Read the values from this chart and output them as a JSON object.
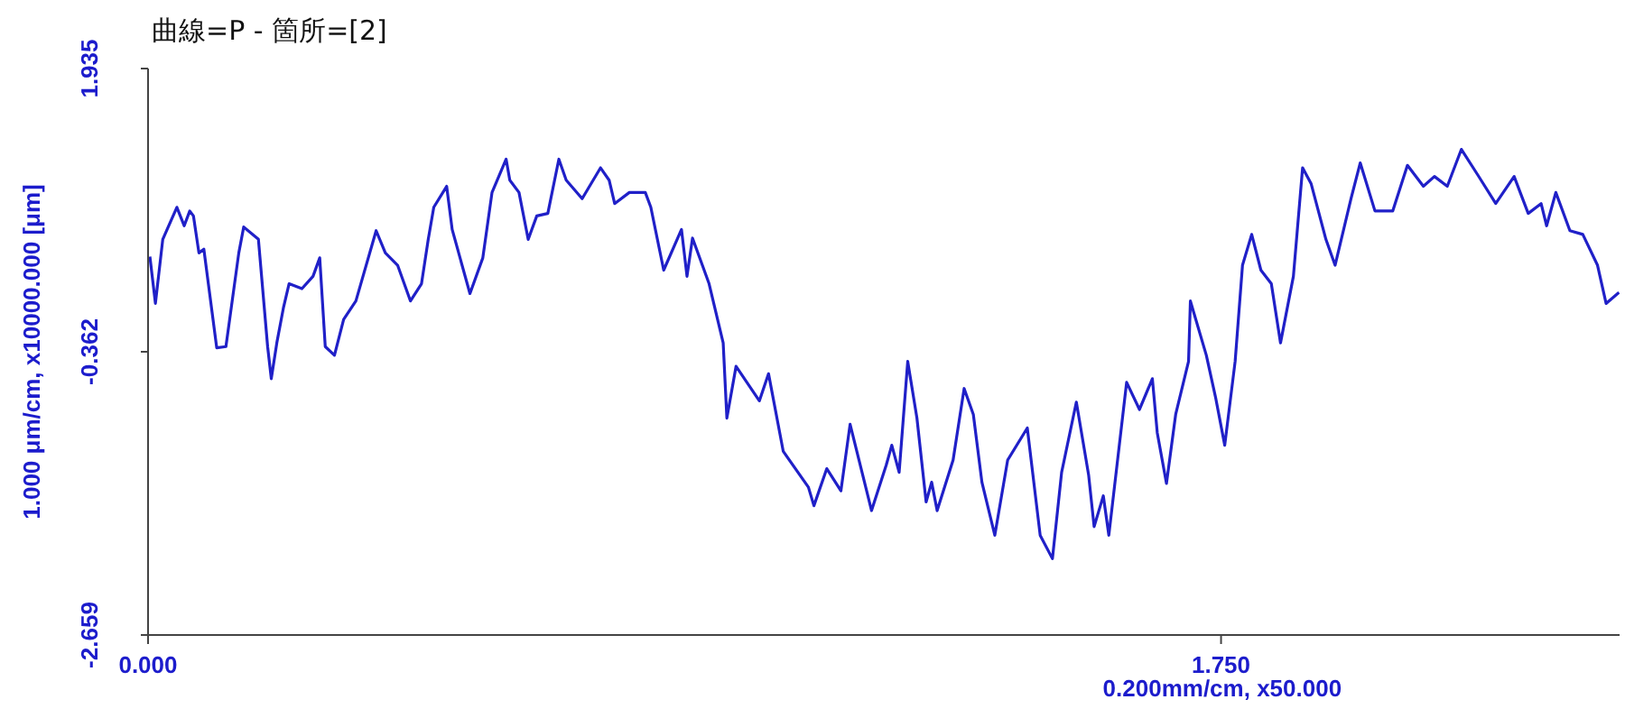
{
  "chart_data": {
    "type": "line",
    "title": "曲線=P - 箇所=[2]",
    "xlabel": "0.200mm/cm, x50.000",
    "ylabel": "1.000 μm/cm, x10000.000 [μm]",
    "xlim": [
      0,
      2.4
    ],
    "xticks": [
      {
        "value": 0,
        "label": "0.000"
      },
      {
        "value": 1.75,
        "label": "1.750"
      }
    ],
    "ylim": [
      -2.659,
      1.935
    ],
    "yticks": [
      -2.659,
      -0.362,
      1.935
    ],
    "series": [
      {
        "color": "#2020c8",
        "x": [
          0.003,
          0.012,
          0.024,
          0.047,
          0.059,
          0.068,
          0.074,
          0.083,
          0.091,
          0.112,
          0.127,
          0.148,
          0.156,
          0.18,
          0.195,
          0.201,
          0.21,
          0.221,
          0.23,
          0.251,
          0.269,
          0.28,
          0.289,
          0.304,
          0.319,
          0.339,
          0.372,
          0.387,
          0.407,
          0.428,
          0.446,
          0.457,
          0.466,
          0.487,
          0.496,
          0.525,
          0.546,
          0.561,
          0.584,
          0.59,
          0.605,
          0.62,
          0.634,
          0.652,
          0.67,
          0.682,
          0.708,
          0.738,
          0.752,
          0.761,
          0.785,
          0.811,
          0.82,
          0.841,
          0.87,
          0.879,
          0.888,
          0.915,
          0.938,
          0.944,
          0.959,
          0.997,
          1.012,
          1.036,
          1.077,
          1.086,
          1.107,
          1.13,
          1.145,
          1.18,
          1.204,
          1.213,
          1.225,
          1.239,
          1.254,
          1.269,
          1.278,
          1.287,
          1.313,
          1.331,
          1.346,
          1.36,
          1.381,
          1.402,
          1.434,
          1.455,
          1.475,
          1.49,
          1.514,
          1.534,
          1.543,
          1.558,
          1.567,
          1.596,
          1.617,
          1.638,
          1.646,
          1.661,
          1.676,
          1.697,
          1.7,
          1.726,
          1.741,
          1.756,
          1.773,
          1.785,
          1.8,
          1.815,
          1.832,
          1.847,
          1.868,
          1.883,
          1.897,
          1.921,
          1.936,
          1.962,
          1.977,
          2.001,
          2.03,
          2.054,
          2.08,
          2.098,
          2.119,
          2.142,
          2.169,
          2.198,
          2.228,
          2.251,
          2.272,
          2.281,
          2.296,
          2.319,
          2.34,
          2.364,
          2.378,
          2.399
        ],
        "values": [
          0.41,
          0.03,
          0.55,
          0.81,
          0.66,
          0.78,
          0.74,
          0.44,
          0.47,
          -0.33,
          -0.32,
          0.44,
          0.65,
          0.55,
          -0.32,
          -0.58,
          -0.29,
          0.0,
          0.19,
          0.15,
          0.25,
          0.4,
          -0.32,
          -0.39,
          -0.1,
          0.05,
          0.62,
          0.44,
          0.34,
          0.05,
          0.19,
          0.55,
          0.81,
          0.98,
          0.63,
          0.11,
          0.4,
          0.93,
          1.2,
          1.03,
          0.93,
          0.55,
          0.74,
          0.76,
          1.2,
          1.03,
          0.88,
          1.13,
          1.03,
          0.84,
          0.93,
          0.93,
          0.81,
          0.3,
          0.63,
          0.25,
          0.56,
          0.19,
          -0.29,
          -0.9,
          -0.48,
          -0.76,
          -0.54,
          -1.17,
          -1.46,
          -1.61,
          -1.31,
          -1.49,
          -0.95,
          -1.65,
          -1.28,
          -1.12,
          -1.34,
          -0.44,
          -0.9,
          -1.58,
          -1.42,
          -1.65,
          -1.24,
          -0.66,
          -0.87,
          -1.42,
          -1.85,
          -1.24,
          -0.98,
          -1.85,
          -2.04,
          -1.34,
          -0.77,
          -1.36,
          -1.78,
          -1.53,
          -1.85,
          -0.61,
          -0.83,
          -0.58,
          -1.02,
          -1.43,
          -0.87,
          -0.44,
          0.05,
          -0.39,
          -0.73,
          -1.12,
          -0.44,
          0.34,
          0.59,
          0.3,
          0.19,
          -0.29,
          0.25,
          1.13,
          1.0,
          0.55,
          0.34,
          0.88,
          1.17,
          0.78,
          0.78,
          1.15,
          0.98,
          1.06,
          0.98,
          1.28,
          1.07,
          0.84,
          1.06,
          0.76,
          0.84,
          0.66,
          0.93,
          0.62,
          0.59,
          0.34,
          0.03,
          0.12
        ]
      }
    ]
  }
}
